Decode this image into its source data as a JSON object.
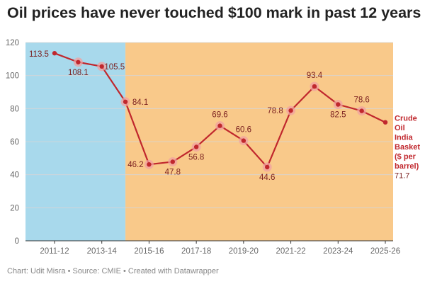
{
  "title": "Oil prices have never touched $100 mark in past 12 years",
  "footer": "Chart: Udit Misra • Source: CMIE • Created with Datawrapper",
  "colors": {
    "line": "#c0272d",
    "marker_halo": "#f0a0a0",
    "region_blue": "#a8d9ec",
    "region_orange": "#f9c98a",
    "grid": "#d6d6d6"
  },
  "chart_data": {
    "type": "line",
    "title": "Oil prices have never touched $100 mark in past 12 years",
    "xlabel": "",
    "ylabel": "",
    "ylim": [
      0,
      120
    ],
    "yticks": [
      0,
      20,
      40,
      60,
      80,
      100,
      120
    ],
    "x": [
      "2011-12",
      "2012-13",
      "2013-14",
      "2014-15",
      "2015-16",
      "2016-17",
      "2017-18",
      "2018-19",
      "2019-20",
      "2020-21",
      "2021-22",
      "2022-23",
      "2023-24",
      "2024-25",
      "2025-26"
    ],
    "xtick_labels": [
      "2011-12",
      "2013-14",
      "2015-16",
      "2017-18",
      "2019-20",
      "2021-22",
      "2023-24",
      "2025-26"
    ],
    "series": [
      {
        "name": "Crude Oil India Basket ($ per barrel)",
        "name_lines": [
          "Crude",
          "Oil",
          "India",
          "Basket",
          "($ per",
          "barrel)"
        ],
        "values": [
          113.5,
          108.1,
          105.5,
          84.1,
          46.2,
          47.8,
          56.8,
          69.6,
          60.6,
          44.6,
          78.8,
          93.4,
          82.5,
          78.6,
          71.7
        ],
        "labels": [
          "113.5",
          "108.1",
          "105.5",
          "84.1",
          "46.2",
          "47.8",
          "56.8",
          "69.6",
          "60.6",
          "44.6",
          "78.8",
          "93.4",
          "82.5",
          "78.6",
          "71.7"
        ]
      }
    ],
    "background_regions": [
      {
        "from": "2011-12",
        "to": "2014-15",
        "color": "#a8d9ec"
      },
      {
        "from": "2014-15",
        "to": "2025-26",
        "color": "#f9c98a"
      }
    ],
    "grid": true,
    "legend": "inline-right"
  }
}
